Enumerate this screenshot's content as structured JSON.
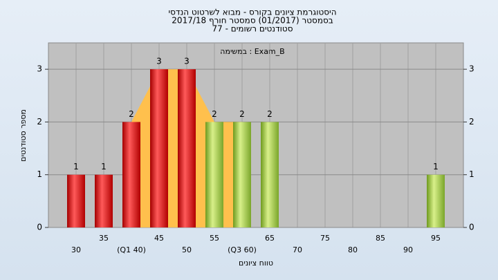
{
  "chart_data": {
    "type": "bar",
    "title": "היסטוגרמת ציונים בקורס - מבוא לשרטוט הנדסי",
    "subtitle": "בסמסטר  (01/2017)  סמסטר חורף 2017/18",
    "subtitle2": "סטודנטים רשומים - 77",
    "annotation": "במשימה : Exam_B",
    "ylabel": "מספר סטודנטים",
    "xlabel": "טווח ציונים",
    "x": [
      30,
      35,
      40,
      45,
      50,
      55,
      60,
      65,
      70,
      75,
      80,
      85,
      90,
      95
    ],
    "values": [
      1,
      1,
      2,
      3,
      3,
      2,
      2,
      2,
      0,
      0,
      0,
      0,
      0,
      1
    ],
    "colors": [
      "red",
      "red",
      "red",
      "red",
      "red",
      "green",
      "green",
      "green",
      "green",
      "green",
      "green",
      "green",
      "green",
      "green"
    ],
    "area_color": "#ffc04d",
    "xlim": [
      25,
      100
    ],
    "xticks": [
      30,
      35,
      {
        "value": 40,
        "label": "(Q1 40)"
      },
      45,
      50,
      55,
      {
        "value": 60,
        "label": "(Q3 60)"
      },
      65,
      70,
      75,
      80,
      85,
      90,
      95
    ],
    "ylim": [
      0,
      3.5
    ],
    "yticks": [
      0,
      1,
      2,
      3
    ],
    "grid": true
  }
}
